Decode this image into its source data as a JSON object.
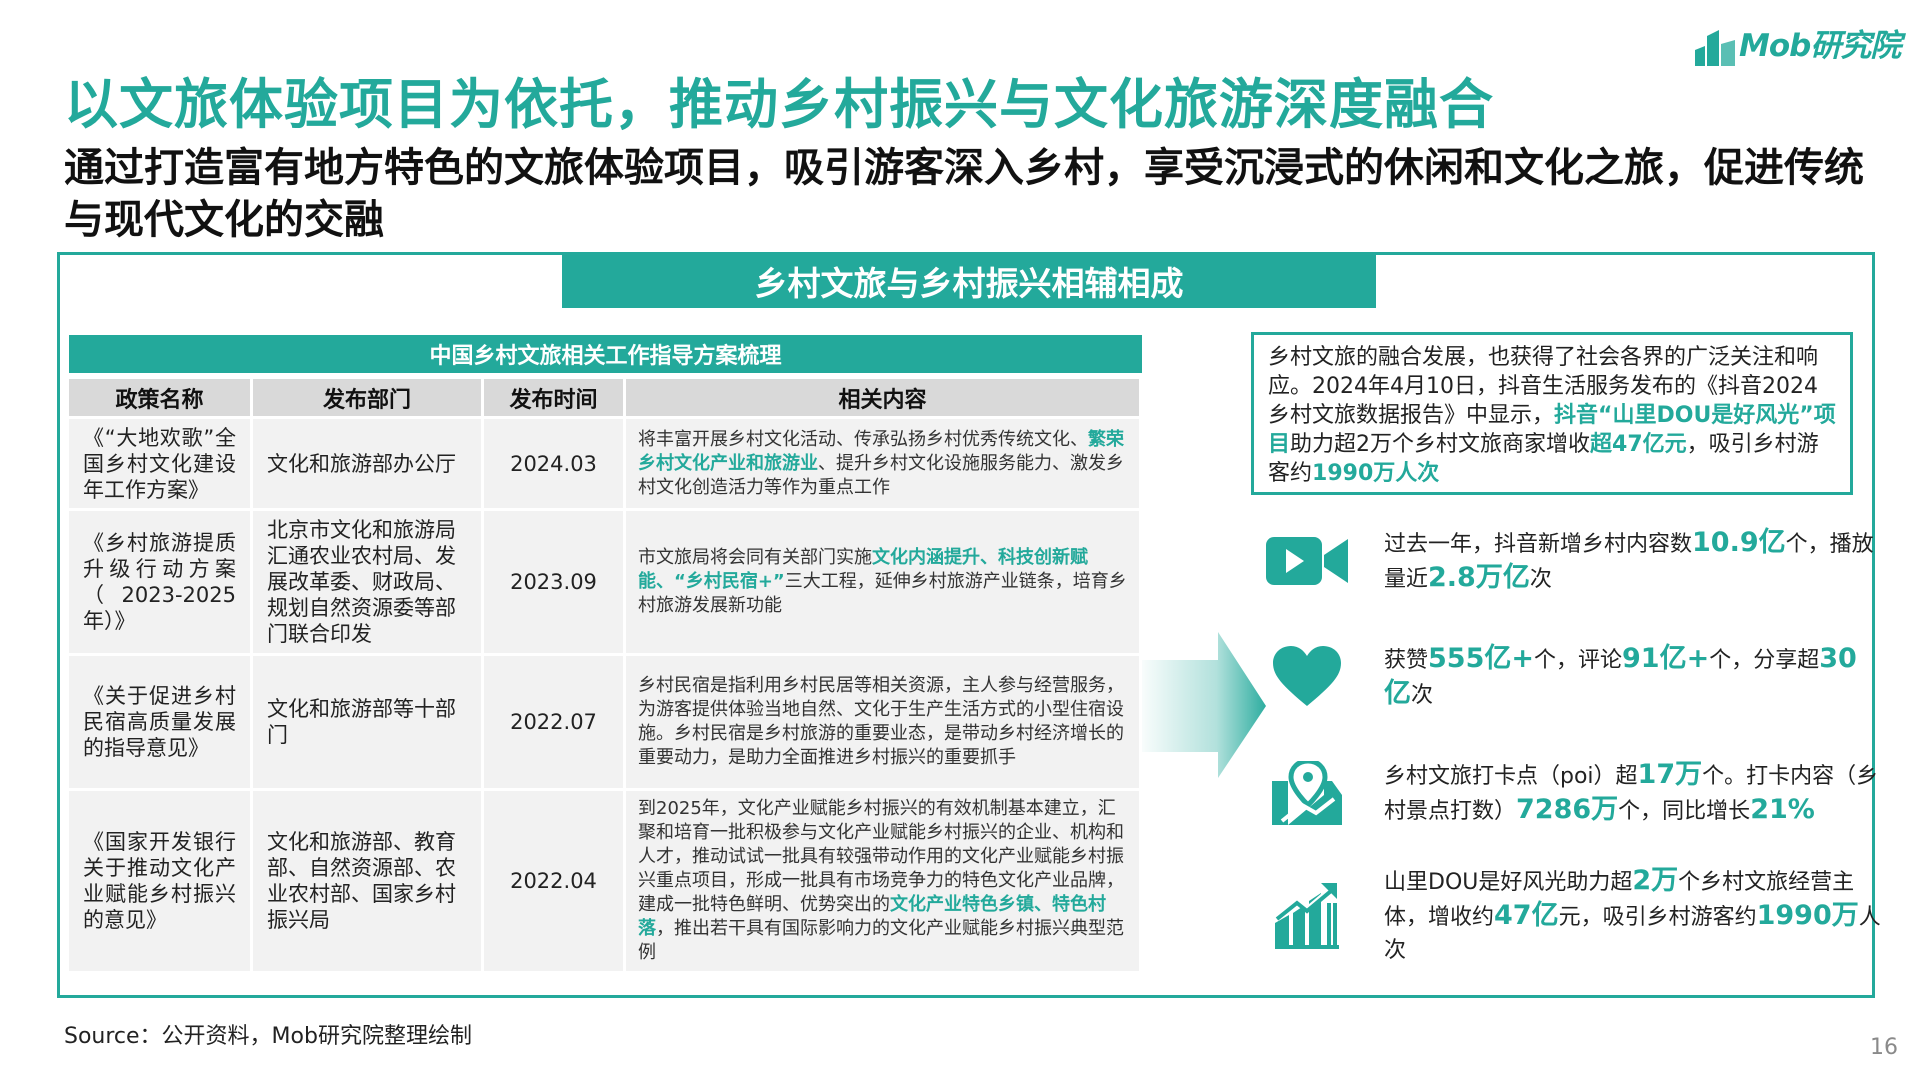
{
  "brand": {
    "logo_text": "Mob研究院",
    "accent": "#23a99b"
  },
  "title": "以文旅体验项目为依托，推动乡村振兴与文化旅游深度融合",
  "subtitle": "通过打造富有地方特色的文旅体验项目，吸引游客深入乡村，享受沉浸式的休闲和文化之旅，促进传统与现代文化的交融",
  "section_banner": "乡村文旅与乡村振兴相辅相成",
  "table": {
    "caption": "中国乡村文旅相关工作指导方案梳理",
    "headers": [
      "政策名称",
      "发布部门",
      "发布时间",
      "相关内容"
    ],
    "rows": [
      {
        "name": "《“大地欢歌”全国乡村文化建设年工作方案》",
        "dept": "文化和旅游部办公厅",
        "date": "2024.03",
        "content_a": "将丰富开展乡村文化活动、传承弘扬乡村优秀传统文化、",
        "content_hl": "繁荣乡村文化产业和旅游业",
        "content_b": "、提升乡村文化设施服务能力、激发乡村文化创造活力等作为重点工作"
      },
      {
        "name": "《乡村旅游提质升级行动方案（2023-2025年）》",
        "dept": "北京市文化和旅游局汇通农业农村局、发展改革委、财政局、规划自然资源委等部门联合印发",
        "date": "2023.09",
        "content_a": "市文旅局将会同有关部门实施",
        "content_hl": "文化内涵提升、科技创新赋能、“乡村民宿+”",
        "content_b": "三大工程，延伸乡村旅游产业链条，培育乡村旅游发展新功能"
      },
      {
        "name": "《关于促进乡村民宿高质量发展的指导意见》",
        "dept": "文化和旅游部等十部门",
        "date": "2022.07",
        "content_a": "乡村民宿是指利用乡村民居等相关资源，主人参与经营服务，为游客提供体验当地自然、文化于生产生活方式的小型住宿设施。乡村民宿是乡村旅游的重要业态，是带动乡村经济增长的重要动力，是助力全面推进乡村振兴的重要抓手",
        "content_hl": "",
        "content_b": ""
      },
      {
        "name": "《国家开发银行关于推动文化产业赋能乡村振兴的意见》",
        "dept": "文化和旅游部、教育部、自然资源部、农业农村部、国家乡村振兴局",
        "date": "2022.04",
        "content_a": "到2025年，文化产业赋能乡村振兴的有效机制基本建立，汇聚和培育一批积极参与文化产业赋能乡村振兴的企业、机构和人才，推动试试一批具有较强带动作用的文化产业赋能乡村振兴重点项目，形成一批具有市场竞争力的特色文化产业品牌，建成一批特色鲜明、优势突出的",
        "content_hl": "文化产业特色乡镇、特色村落",
        "content_b": "，推出若干具有国际影响力的文化产业赋能乡村振兴典型范例"
      }
    ]
  },
  "quote": {
    "a": "乡村文旅的融合发展，也获得了社会各界的广泛关注和响应。2024年4月10日，抖音生活服务发布的《抖音2024乡村文旅数据报告》中显示，",
    "hl1": "抖音“山里DOU是好风光”项目",
    "b": "助力超2万个乡村文旅商家增收",
    "hl2": "超47亿元",
    "c": "，吸引乡村游客约",
    "hl3": "1990万人次"
  },
  "stats": [
    {
      "icon": "video-camera-icon",
      "parts": [
        [
          "过去一年，抖音新增乡村内容数",
          false
        ],
        [
          "10.9亿",
          true
        ],
        [
          "个，播放量近",
          false
        ],
        [
          "2.8万亿",
          true
        ],
        [
          "次",
          false
        ]
      ]
    },
    {
      "icon": "heart-icon",
      "parts": [
        [
          "获赞",
          false
        ],
        [
          "555亿+",
          true
        ],
        [
          "个，评论",
          false
        ],
        [
          "91亿+",
          true
        ],
        [
          "个，分享超",
          false
        ],
        [
          "30亿",
          true
        ],
        [
          "次",
          false
        ]
      ]
    },
    {
      "icon": "map-pin-icon",
      "parts": [
        [
          "乡村文旅打卡点（poi）超",
          false
        ],
        [
          "17万",
          true
        ],
        [
          "个。打卡内容（乡村景点打数）",
          false
        ],
        [
          "7286万",
          true
        ],
        [
          "个，同比增长",
          false
        ],
        [
          "21%",
          true
        ]
      ]
    },
    {
      "icon": "growth-chart-icon",
      "parts": [
        [
          "山里DOU是好风光助力超",
          false
        ],
        [
          "2万",
          true
        ],
        [
          "个乡村文旅经营主体，增收约",
          false
        ],
        [
          "47亿",
          true
        ],
        [
          "元，吸引乡村游客约",
          false
        ],
        [
          "1990万",
          true
        ],
        [
          "人次",
          false
        ]
      ]
    }
  ],
  "source": "Source：公开资料，Mob研究院整理绘制",
  "page_number": "16"
}
